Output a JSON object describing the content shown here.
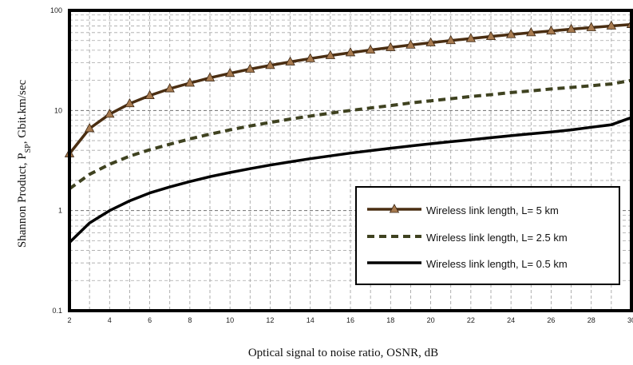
{
  "chart_data": {
    "type": "line",
    "xlabel": "Optical signal to noise ratio, OSNR, dB",
    "ylabel": "Shannon Product, P",
    "ylabel_sub": "SP",
    "ylabel_unit": ", Gbit.km/sec",
    "xlim": [
      2,
      30
    ],
    "ylim": [
      0.1,
      100
    ],
    "y_scale": "log",
    "grid": true,
    "legend_position": "lower-right",
    "x_ticks": [
      "2",
      "4",
      "6",
      "8",
      "10",
      "12",
      "14",
      "16",
      "18",
      "20",
      "22",
      "24",
      "26",
      "28",
      "30"
    ],
    "y_ticks": [
      "0.1",
      "1",
      "10",
      "100"
    ],
    "x": [
      2,
      3,
      4,
      5,
      6,
      7,
      8,
      9,
      10,
      11,
      12,
      13,
      14,
      15,
      16,
      17,
      18,
      19,
      20,
      21,
      22,
      23,
      24,
      25,
      26,
      27,
      28,
      29,
      30
    ],
    "series": [
      {
        "name": "Wireless link length, L= 5 km",
        "color": "#4a2e12",
        "marker_color": "#a77a4f",
        "style": "solid-triangle",
        "values": [
          3.7,
          6.6,
          9.2,
          11.7,
          14.1,
          16.5,
          18.8,
          21.2,
          23.5,
          25.9,
          28.2,
          30.6,
          33.0,
          35.4,
          37.8,
          40.2,
          42.6,
          45.1,
          47.5,
          50.0,
          52.4,
          54.9,
          57.4,
          59.9,
          62.4,
          64.9,
          67.4,
          69.9,
          72.4
        ]
      },
      {
        "name": "Wireless link length, L= 2.5 km",
        "color": "#3f4220",
        "style": "dashed",
        "values": [
          1.65,
          2.3,
          2.9,
          3.5,
          4.05,
          4.6,
          5.2,
          5.8,
          6.4,
          7.0,
          7.6,
          8.2,
          8.8,
          9.4,
          10.0,
          10.6,
          11.2,
          11.9,
          12.5,
          13.1,
          13.8,
          14.4,
          15.1,
          15.7,
          16.4,
          17.0,
          17.7,
          18.4,
          20.0
        ]
      },
      {
        "name": "Wireless link length, L= 0.5 km",
        "color": "#000000",
        "style": "solid",
        "values": [
          0.48,
          0.75,
          1.0,
          1.25,
          1.5,
          1.72,
          1.95,
          2.18,
          2.4,
          2.62,
          2.85,
          3.07,
          3.3,
          3.52,
          3.75,
          3.97,
          4.2,
          4.42,
          4.65,
          4.88,
          5.1,
          5.35,
          5.6,
          5.85,
          6.1,
          6.4,
          6.8,
          7.2,
          8.5
        ]
      }
    ]
  }
}
